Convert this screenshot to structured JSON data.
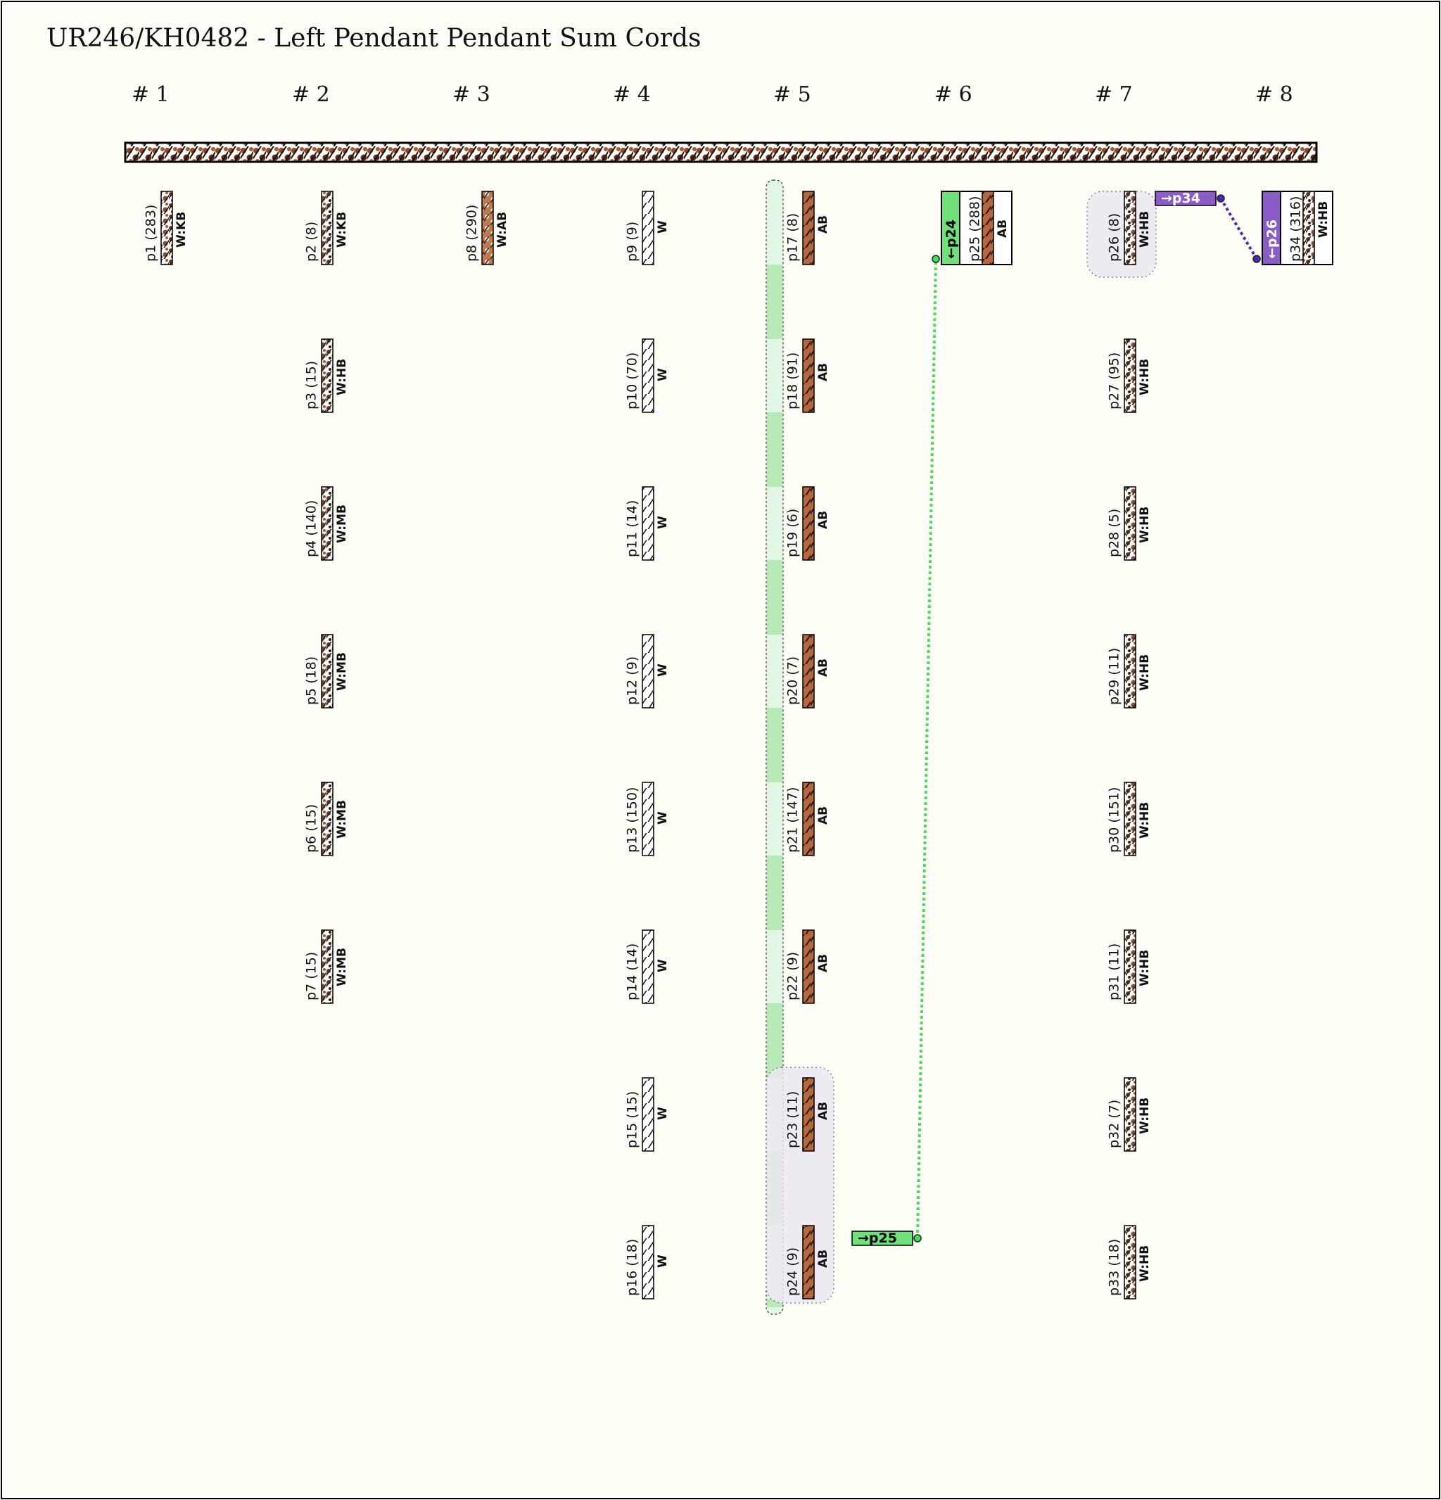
{
  "title": "UR246/KH0482 - Left Pendant Pendant Sum Cords",
  "groups": [
    "# 1",
    "# 2",
    "# 3",
    "# 4",
    "# 5",
    "# 6",
    "# 7",
    "# 8"
  ],
  "colors": {
    "background": "#fffff8",
    "border": "#000000",
    "brown": "#b5673e",
    "dark_brown": "#5b2e1a",
    "white_cord": "#ffffff",
    "green_highlight": "#b8eab8",
    "green_light": "#e3f6e3",
    "green_link": "#44dd55",
    "green_tag": "#6fe07a",
    "purple_link": "#4a2ab0",
    "purple_tag": "#8a5cc8",
    "lavender": "#ece8f2"
  },
  "cords": [
    {
      "id": "p1",
      "label": "p1 (283)",
      "color": "W:KB",
      "pattern": "mottled",
      "group": 0,
      "row": 0
    },
    {
      "id": "p2",
      "label": "p2 (8)",
      "color": "W:KB",
      "pattern": "mottled",
      "group": 1,
      "row": 0
    },
    {
      "id": "p3",
      "label": "p3 (15)",
      "color": "W:HB",
      "pattern": "mottled",
      "group": 1,
      "row": 1
    },
    {
      "id": "p4",
      "label": "p4 (140)",
      "color": "W:MB",
      "pattern": "mottled",
      "group": 1,
      "row": 2
    },
    {
      "id": "p5",
      "label": "p5 (18)",
      "color": "W:MB",
      "pattern": "mottled",
      "group": 1,
      "row": 3
    },
    {
      "id": "p6",
      "label": "p6 (15)",
      "color": "W:MB",
      "pattern": "mottled",
      "group": 1,
      "row": 4
    },
    {
      "id": "p7",
      "label": "p7 (15)",
      "color": "W:MB",
      "pattern": "mottled",
      "group": 1,
      "row": 5
    },
    {
      "id": "p8",
      "label": "p8 (290)",
      "color": "W:AB",
      "pattern": "mottled-light",
      "group": 2,
      "row": 0
    },
    {
      "id": "p9",
      "label": "p9 (9)",
      "color": "W",
      "pattern": "white",
      "group": 3,
      "row": 0
    },
    {
      "id": "p10",
      "label": "p10 (70)",
      "color": "W",
      "pattern": "white",
      "group": 3,
      "row": 1
    },
    {
      "id": "p11",
      "label": "p11 (14)",
      "color": "W",
      "pattern": "white",
      "group": 3,
      "row": 2
    },
    {
      "id": "p12",
      "label": "p12 (9)",
      "color": "W",
      "pattern": "white",
      "group": 3,
      "row": 3
    },
    {
      "id": "p13",
      "label": "p13 (150)",
      "color": "W",
      "pattern": "white",
      "group": 3,
      "row": 4
    },
    {
      "id": "p14",
      "label": "p14 (14)",
      "color": "W",
      "pattern": "white",
      "group": 3,
      "row": 5
    },
    {
      "id": "p15",
      "label": "p15 (15)",
      "color": "W",
      "pattern": "white",
      "group": 3,
      "row": 6
    },
    {
      "id": "p16",
      "label": "p16 (18)",
      "color": "W",
      "pattern": "white",
      "group": 3,
      "row": 7
    },
    {
      "id": "p17",
      "label": "p17 (8)",
      "color": "AB",
      "pattern": "brown",
      "group": 4,
      "row": 0
    },
    {
      "id": "p18",
      "label": "p18 (91)",
      "color": "AB",
      "pattern": "brown",
      "group": 4,
      "row": 1
    },
    {
      "id": "p19",
      "label": "p19 (6)",
      "color": "AB",
      "pattern": "brown",
      "group": 4,
      "row": 2
    },
    {
      "id": "p20",
      "label": "p20 (7)",
      "color": "AB",
      "pattern": "brown",
      "group": 4,
      "row": 3
    },
    {
      "id": "p21",
      "label": "p21 (147)",
      "color": "AB",
      "pattern": "brown",
      "group": 4,
      "row": 4
    },
    {
      "id": "p22",
      "label": "p22 (9)",
      "color": "AB",
      "pattern": "brown",
      "group": 4,
      "row": 5
    },
    {
      "id": "p23",
      "label": "p23 (11)",
      "color": "AB",
      "pattern": "brown",
      "group": 4,
      "row": 6
    },
    {
      "id": "p24",
      "label": "p24 (9)",
      "color": "AB",
      "pattern": "brown",
      "group": 4,
      "row": 7,
      "tag": "→p25",
      "tag_color": "green"
    },
    {
      "id": "p25",
      "label": "p25 (288)",
      "color": "AB",
      "pattern": "brown",
      "group": 5,
      "row": 0,
      "sum_tag": "←p24",
      "tag_color": "green"
    },
    {
      "id": "p26",
      "label": "p26 (8)",
      "color": "W:HB",
      "pattern": "mottled",
      "group": 6,
      "row": 0,
      "tag": "→p34",
      "tag_color": "purple"
    },
    {
      "id": "p27",
      "label": "p27 (95)",
      "color": "W:HB",
      "pattern": "mottled",
      "group": 6,
      "row": 1
    },
    {
      "id": "p28",
      "label": "p28 (5)",
      "color": "W:HB",
      "pattern": "mottled",
      "group": 6,
      "row": 2
    },
    {
      "id": "p29",
      "label": "p29 (11)",
      "color": "W:HB",
      "pattern": "mottled",
      "group": 6,
      "row": 3
    },
    {
      "id": "p30",
      "label": "p30 (151)",
      "color": "W:HB",
      "pattern": "mottled",
      "group": 6,
      "row": 4
    },
    {
      "id": "p31",
      "label": "p31 (11)",
      "color": "W:HB",
      "pattern": "mottled",
      "group": 6,
      "row": 5
    },
    {
      "id": "p32",
      "label": "p32 (7)",
      "color": "W:HB",
      "pattern": "mottled",
      "group": 6,
      "row": 6
    },
    {
      "id": "p33",
      "label": "p33 (18)",
      "color": "W:HB",
      "pattern": "mottled",
      "group": 6,
      "row": 7
    },
    {
      "id": "p34",
      "label": "p34 (316)",
      "color": "W:HB",
      "pattern": "mottled",
      "group": 7,
      "row": 0,
      "sum_tag": "←p26",
      "tag_color": "purple"
    }
  ]
}
